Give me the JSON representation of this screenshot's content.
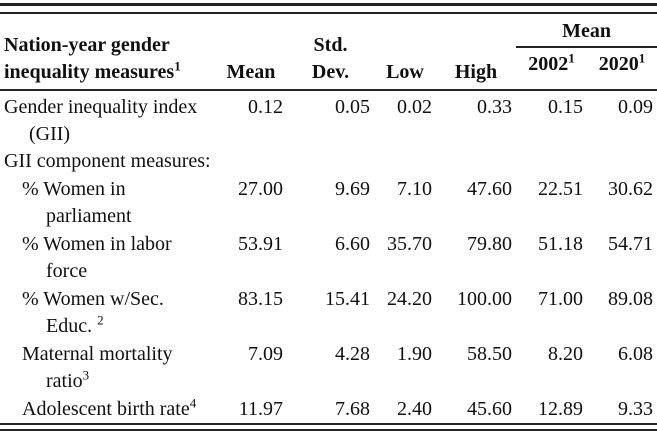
{
  "table": {
    "header": {
      "row_label_line1": "Nation-year gender",
      "row_label_line2": "inequality measures",
      "row_label_sup": "1",
      "col_mean": "Mean",
      "col_std_line1": "Std.",
      "col_std_line2": "Dev.",
      "col_low": "Low",
      "col_high": "High",
      "spanner": "Mean",
      "col_2002": "2002",
      "col_2002_sup": "1",
      "col_2020": "2020",
      "col_2020_sup": "1"
    },
    "rows": [
      {
        "label_line1": "Gender inequality index",
        "label_line2": "(GII)",
        "values": [
          "0.12",
          "0.05",
          "0.02",
          "0.33",
          "0.15",
          "0.09"
        ]
      },
      {
        "label_line1": "GII component measures:"
      },
      {
        "label_line1": "% Women in",
        "label_line2": "parliament",
        "values": [
          "27.00",
          "9.69",
          "7.10",
          "47.60",
          "22.51",
          "30.62"
        ]
      },
      {
        "label_line1": "% Women in labor",
        "label_line2": "force",
        "values": [
          "53.91",
          "6.60",
          "35.70",
          "79.80",
          "51.18",
          "54.71"
        ]
      },
      {
        "label_line1": "% Women w/Sec.",
        "label_line2": "Educ. ",
        "label_line2_sup": "2",
        "values": [
          "83.15",
          "15.41",
          "24.20",
          "100.00",
          "71.00",
          "89.08"
        ]
      },
      {
        "label_line1": "Maternal mortality",
        "label_line2": "ratio",
        "label_line2_sup": "3",
        "values": [
          "7.09",
          "4.28",
          "1.90",
          "58.50",
          "8.20",
          "6.08"
        ]
      },
      {
        "label_line1": "Adolescent birth rate",
        "label_line1_sup": "4",
        "values": [
          "11.97",
          "7.68",
          "2.40",
          "45.60",
          "12.89",
          "9.33"
        ]
      }
    ]
  }
}
